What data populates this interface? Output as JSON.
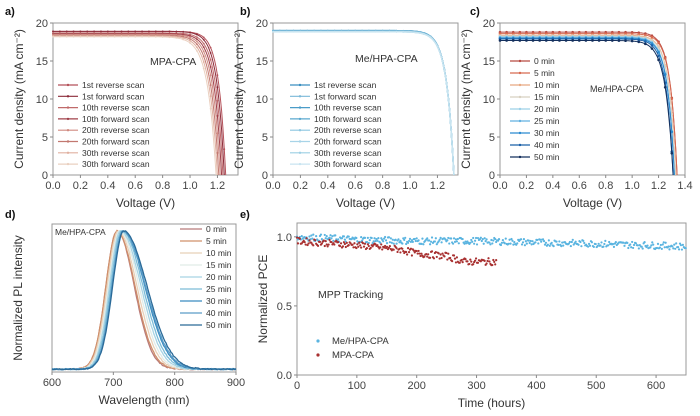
{
  "chart_data": [
    {
      "id": "a",
      "panel_label": "a)",
      "type": "line",
      "title": "",
      "annotation": "MPA-CPA",
      "xlabel": "Voltage (V)",
      "ylabel": "Current density (mA cm⁻²)",
      "xlim": [
        0,
        1.35
      ],
      "ylim": [
        0,
        20
      ],
      "xticks": [
        "0.0",
        "0.2",
        "0.4",
        "0.6",
        "0.8",
        "1.0",
        "1.2"
      ],
      "xtick_values": [
        0,
        0.2,
        0.4,
        0.6,
        0.8,
        1.0,
        1.2
      ],
      "yticks": [
        "0",
        "5",
        "10",
        "15",
        "20"
      ],
      "ytick_values": [
        0,
        5,
        10,
        15,
        20
      ],
      "legend_position": "bottom-left",
      "series": [
        {
          "name": "1st reverse scan",
          "color": "#b5525a",
          "jsc": 18.9,
          "voc": 1.26,
          "ff_knee": 0.9
        },
        {
          "name": "1st forward scan",
          "color": "#8c2b3a",
          "jsc": 18.9,
          "voc": 1.25,
          "ff_knee": 0.86
        },
        {
          "name": "10th reverse scan",
          "color": "#c06a6a",
          "jsc": 18.7,
          "voc": 1.24,
          "ff_knee": 0.84
        },
        {
          "name": "10th forward scan",
          "color": "#a0404a",
          "jsc": 18.6,
          "voc": 1.23,
          "ff_knee": 0.82
        },
        {
          "name": "20th reverse scan",
          "color": "#d08a80",
          "jsc": 18.5,
          "voc": 1.22,
          "ff_knee": 0.8
        },
        {
          "name": "20th forward scan",
          "color": "#c27870",
          "jsc": 18.4,
          "voc": 1.21,
          "ff_knee": 0.78
        },
        {
          "name": "30th reverse scan",
          "color": "#e0b0a0",
          "jsc": 18.3,
          "voc": 1.2,
          "ff_knee": 0.76
        },
        {
          "name": "30th forward scan",
          "color": "#ead0c0",
          "jsc": 18.2,
          "voc": 1.19,
          "ff_knee": 0.74
        }
      ]
    },
    {
      "id": "b",
      "panel_label": "b)",
      "type": "line",
      "annotation": "Me/HPA-CPA",
      "xlabel": "Voltage (V)",
      "ylabel": "Current density (mA cm⁻²)",
      "xlim": [
        0,
        1.35
      ],
      "ylim": [
        0,
        20
      ],
      "xticks": [
        "0.0",
        "0.2",
        "0.4",
        "0.6",
        "0.8",
        "1.0",
        "1.2"
      ],
      "xtick_values": [
        0,
        0.2,
        0.4,
        0.6,
        0.8,
        1.0,
        1.2
      ],
      "yticks": [
        "0",
        "5",
        "10",
        "15",
        "20"
      ],
      "ytick_values": [
        0,
        5,
        10,
        15,
        20
      ],
      "legend_position": "bottom-left",
      "series": [
        {
          "name": "1st reverse scan",
          "color": "#3a8fc0",
          "jsc": 19.0,
          "voc": 1.32,
          "ff_knee": 0.86
        },
        {
          "name": "1st forward scan",
          "color": "#7ab8d8",
          "jsc": 19.0,
          "voc": 1.32,
          "ff_knee": 0.86
        },
        {
          "name": "10th reverse scan",
          "color": "#4a9cc8",
          "jsc": 18.95,
          "voc": 1.32,
          "ff_knee": 0.86
        },
        {
          "name": "10th forward scan",
          "color": "#5aa8cf",
          "jsc": 18.95,
          "voc": 1.32,
          "ff_knee": 0.86
        },
        {
          "name": "20th reverse scan",
          "color": "#8cc6e0",
          "jsc": 18.9,
          "voc": 1.32,
          "ff_knee": 0.86
        },
        {
          "name": "20th forward scan",
          "color": "#a8d4e8",
          "jsc": 18.9,
          "voc": 1.32,
          "ff_knee": 0.86
        },
        {
          "name": "30th reverse scan",
          "color": "#9ccfe4",
          "jsc": 18.85,
          "voc": 1.32,
          "ff_knee": 0.86
        },
        {
          "name": "30th forward scan",
          "color": "#c8e4f0",
          "jsc": 18.85,
          "voc": 1.32,
          "ff_knee": 0.86
        }
      ]
    },
    {
      "id": "c",
      "panel_label": "c)",
      "type": "line",
      "annotation": "Me/HPA-CPA",
      "xlabel": "Voltage (V)",
      "ylabel": "Current density (mA cm⁻²)",
      "xlim": [
        0,
        1.4
      ],
      "ylim": [
        0,
        20
      ],
      "xticks": [
        "0.0",
        "0.2",
        "0.4",
        "0.6",
        "0.8",
        "1.0",
        "1.2",
        "1.4"
      ],
      "xtick_values": [
        0,
        0.2,
        0.4,
        0.6,
        0.8,
        1.0,
        1.2,
        1.4
      ],
      "yticks": [
        "0",
        "5",
        "10",
        "15",
        "20"
      ],
      "ytick_values": [
        0,
        5,
        10,
        15,
        20
      ],
      "legend_position": "left",
      "series": [
        {
          "name": "0 min",
          "color": "#b84a42",
          "jsc": 18.8,
          "voc": 1.34,
          "ff_knee": 0.88
        },
        {
          "name": "5 min",
          "color": "#d86a50",
          "jsc": 18.6,
          "voc": 1.34,
          "ff_knee": 0.88
        },
        {
          "name": "10 min",
          "color": "#e8a880",
          "jsc": 18.4,
          "voc": 1.33,
          "ff_knee": 0.87
        },
        {
          "name": "15 min",
          "color": "#d8d0c0",
          "jsc": 18.3,
          "voc": 1.33,
          "ff_knee": 0.87
        },
        {
          "name": "20 min",
          "color": "#9cd0e8",
          "jsc": 18.2,
          "voc": 1.32,
          "ff_knee": 0.87
        },
        {
          "name": "25 min",
          "color": "#60b0e0",
          "jsc": 18.1,
          "voc": 1.32,
          "ff_knee": 0.86
        },
        {
          "name": "30 min",
          "color": "#2a8ad0",
          "jsc": 18.0,
          "voc": 1.32,
          "ff_knee": 0.86
        },
        {
          "name": "40 min",
          "color": "#1a60a8",
          "jsc": 17.9,
          "voc": 1.31,
          "ff_knee": 0.86
        },
        {
          "name": "50 min",
          "color": "#14305e",
          "jsc": 17.7,
          "voc": 1.31,
          "ff_knee": 0.8
        }
      ]
    },
    {
      "id": "d",
      "panel_label": "d)",
      "type": "line",
      "annotation": "Me/HPA-CPA",
      "xlabel": "Wavelength (nm)",
      "ylabel": "Normalized PL intensity",
      "xlim": [
        600,
        900
      ],
      "ylim": [
        0,
        1.05
      ],
      "xticks": [
        "600",
        "700",
        "800",
        "900"
      ],
      "xtick_values": [
        600,
        700,
        800,
        900
      ],
      "yticks": [],
      "legend_position": "top-right",
      "series": [
        {
          "name": "0 min",
          "color": "#b87a7a",
          "peak_nm": 706
        },
        {
          "name": "5 min",
          "color": "#d0906a",
          "peak_nm": 706
        },
        {
          "name": "10 min",
          "color": "#e8d0b8",
          "peak_nm": 708
        },
        {
          "name": "15 min",
          "color": "#e0ece8",
          "peak_nm": 710
        },
        {
          "name": "20 min",
          "color": "#a8d4e4",
          "peak_nm": 712
        },
        {
          "name": "25 min",
          "color": "#7cbcd8",
          "peak_nm": 714
        },
        {
          "name": "30 min",
          "color": "#3a8cc0",
          "peak_nm": 716
        },
        {
          "name": "40 min",
          "color": "#5a9cc8",
          "peak_nm": 716
        },
        {
          "name": "50 min",
          "color": "#2a6a98",
          "peak_nm": 717
        }
      ]
    },
    {
      "id": "e",
      "panel_label": "e)",
      "type": "scatter",
      "annotation": "MPP Tracking",
      "xlabel": "Time (hours)",
      "ylabel": "Normalized PCE",
      "xlim": [
        0,
        650
      ],
      "ylim": [
        0,
        1.1
      ],
      "xticks": [
        "0",
        "100",
        "200",
        "300",
        "400",
        "500",
        "600"
      ],
      "xtick_values": [
        0,
        100,
        200,
        300,
        400,
        500,
        600
      ],
      "yticks": [
        "0.0",
        "0.5",
        "1.0"
      ],
      "ytick_values": [
        0,
        0.5,
        1.0
      ],
      "legend_position": "bottom-left",
      "series": [
        {
          "name": "Me/HPA-CPA",
          "color": "#5ab4e0",
          "x_end": 650,
          "trend": [
            [
              0,
              1.0
            ],
            [
              100,
              0.98
            ],
            [
              200,
              0.97
            ],
            [
              300,
              0.97
            ],
            [
              400,
              0.96
            ],
            [
              500,
              0.95
            ],
            [
              650,
              0.93
            ]
          ]
        },
        {
          "name": "MPA-CPA",
          "color": "#a83030",
          "x_end": 333,
          "trend": [
            [
              0,
              0.97
            ],
            [
              100,
              0.94
            ],
            [
              170,
              0.91
            ],
            [
              200,
              0.88
            ],
            [
              250,
              0.86
            ],
            [
              280,
              0.82
            ],
            [
              333,
              0.82
            ]
          ]
        }
      ]
    }
  ]
}
